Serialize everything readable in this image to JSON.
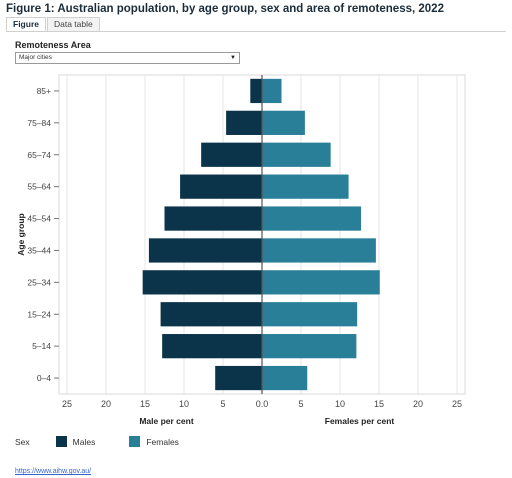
{
  "title": "Figure 1: Australian population, by age group, sex and area of remoteness, 2022",
  "tabs": [
    {
      "label": "Figure",
      "active": true
    },
    {
      "label": "Data table",
      "active": false
    }
  ],
  "filter": {
    "label": "Remoteness Area",
    "selected": "Major cities"
  },
  "legend": {
    "title": "Sex",
    "males": "Males",
    "females": "Females"
  },
  "link": "https://www.aihw.gov.au/",
  "colors": {
    "males": "#0b3349",
    "females": "#2a7f98",
    "axis": "#555555",
    "grid": "#e6e6e6"
  },
  "chart_data": {
    "type": "bar",
    "orientation": "horizontal",
    "ylabel": "Age group",
    "categories": [
      "85+",
      "75–84",
      "65–74",
      "55–64",
      "45–54",
      "35–44",
      "25–34",
      "15–24",
      "5–14",
      "0–4"
    ],
    "series": [
      {
        "name": "Males",
        "side": "left",
        "xlabel": "Male per cent",
        "values": [
          1.5,
          4.6,
          7.8,
          10.5,
          12.5,
          14.5,
          15.3,
          13.0,
          12.8,
          6.0
        ]
      },
      {
        "name": "Females",
        "side": "right",
        "xlabel": "Females per cent",
        "values": [
          2.5,
          5.5,
          8.8,
          11.1,
          12.7,
          14.6,
          15.1,
          12.2,
          12.1,
          5.8
        ]
      }
    ],
    "x_ticks_left": [
      "25",
      "20",
      "15",
      "10",
      "5",
      "0"
    ],
    "x_ticks_right": [
      "0",
      "5",
      "10",
      "15",
      "20",
      "25"
    ],
    "xlim": [
      0,
      25
    ],
    "grid": true
  }
}
